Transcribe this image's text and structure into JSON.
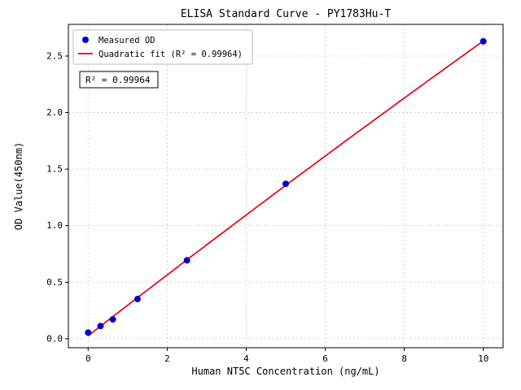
{
  "chart_data": {
    "type": "scatter",
    "title": "ELISA Standard Curve - PY1783Hu-T",
    "xlabel": "Human NT5C Concentration (ng/mL)",
    "ylabel": "OD Value(450nm)",
    "series": [
      {
        "name": "Measured OD",
        "type": "scatter",
        "x": [
          0,
          0.313,
          0.625,
          1.25,
          2.5,
          5,
          10
        ],
        "y": [
          0.054,
          0.112,
          0.171,
          0.351,
          0.693,
          1.37,
          2.63
        ]
      },
      {
        "name": "Quadratic fit (R² = 0.99964)",
        "type": "line",
        "fit": "quadratic"
      }
    ],
    "annotation": "R² = 0.99964",
    "r_squared": 0.99964,
    "xlim": [
      -0.5,
      10.5
    ],
    "ylim": [
      -0.08,
      2.78
    ],
    "xticks": [
      0,
      2,
      4,
      6,
      8,
      10
    ],
    "xtick_labels": [
      "0",
      "2",
      "4",
      "6",
      "8",
      "10"
    ],
    "yticks": [
      0,
      0.5,
      1,
      1.5,
      2,
      2.5
    ],
    "ytick_labels": [
      "0.0",
      "0.5",
      "1.0",
      "1.5",
      "2.0",
      "2.5"
    ],
    "grid": true,
    "legend_position": "upper-left",
    "colors": {
      "scatter": "#0000cd",
      "fit_line": "#e8000b",
      "grid": "#c8c8c8",
      "frame": "#000000"
    }
  }
}
